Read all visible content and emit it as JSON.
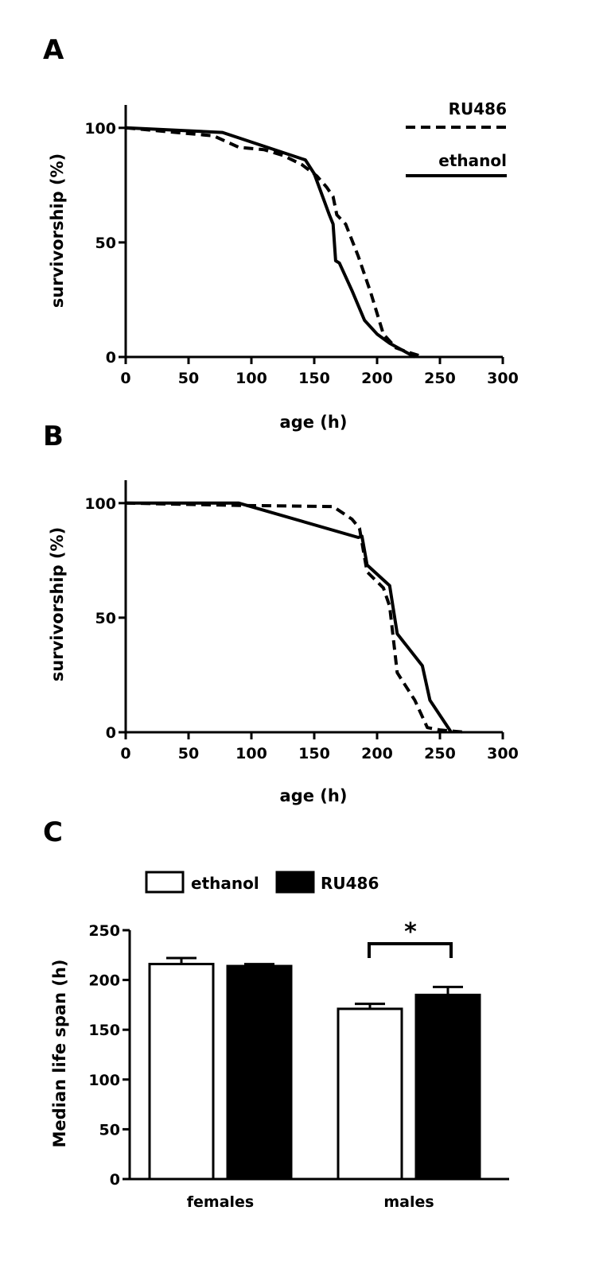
{
  "chart_data": [
    {
      "panel": "A",
      "type": "line",
      "xlabel": "age (h)",
      "ylabel": "survivorship (%)",
      "xlim": [
        0,
        300
      ],
      "ylim": [
        0,
        110
      ],
      "xticks": [
        0,
        50,
        100,
        150,
        200,
        250,
        300
      ],
      "yticks": [
        0,
        50,
        100
      ],
      "legend_position": "top-right",
      "series": [
        {
          "name": "RU486",
          "style": "dashed",
          "x": [
            0,
            70,
            90,
            110,
            125,
            140,
            152,
            160,
            165,
            168,
            175,
            185,
            195,
            205,
            215,
            225,
            237
          ],
          "y": [
            100,
            96.5,
            91.5,
            90.5,
            88,
            84,
            79,
            74,
            70,
            62,
            58,
            44,
            28,
            10,
            4,
            2,
            0
          ]
        },
        {
          "name": "ethanol",
          "style": "solid",
          "x": [
            0,
            77,
            143,
            150,
            162,
            165,
            167,
            170,
            180,
            190,
            200,
            210,
            220,
            230
          ],
          "y": [
            100,
            98,
            86,
            80,
            62,
            58,
            42,
            41,
            29,
            16,
            10,
            6,
            3,
            0
          ]
        }
      ]
    },
    {
      "panel": "B",
      "type": "line",
      "xlabel": "age (h)",
      "ylabel": "survivorship (%)",
      "xlim": [
        0,
        300
      ],
      "ylim": [
        0,
        110
      ],
      "xticks": [
        0,
        50,
        100,
        150,
        200,
        250,
        300
      ],
      "yticks": [
        0,
        50,
        100
      ],
      "series": [
        {
          "name": "RU486",
          "style": "dashed",
          "x": [
            0,
            90,
            165,
            180,
            186,
            192,
            205,
            210,
            216,
            230,
            240,
            250,
            260,
            270
          ],
          "y": [
            100,
            99,
            98.5,
            93,
            89,
            70,
            63,
            55,
            26,
            14,
            2,
            1,
            0.5,
            0
          ]
        },
        {
          "name": "ethanol",
          "style": "solid",
          "x": [
            0,
            90,
            185,
            188,
            192,
            210,
            216,
            236,
            242,
            259
          ],
          "y": [
            100,
            100,
            85,
            85.5,
            73,
            64,
            43,
            29,
            14,
            0
          ]
        }
      ]
    },
    {
      "panel": "C",
      "type": "bar",
      "ylabel": "Median life span (h)",
      "ylim": [
        0,
        250
      ],
      "yticks": [
        0,
        50,
        100,
        150,
        200,
        250
      ],
      "categories": [
        "females",
        "males"
      ],
      "legend_position": "top",
      "series": [
        {
          "name": "ethanol",
          "fill": "#ffffff",
          "values": [
            216,
            171
          ],
          "errors": [
            6,
            5
          ]
        },
        {
          "name": "RU486",
          "fill": "#000000",
          "values": [
            214,
            185
          ],
          "errors": [
            2,
            8
          ]
        }
      ],
      "annotations": [
        {
          "text": "*",
          "between": [
            "ethanol",
            "RU486"
          ],
          "category": "males"
        }
      ]
    }
  ]
}
